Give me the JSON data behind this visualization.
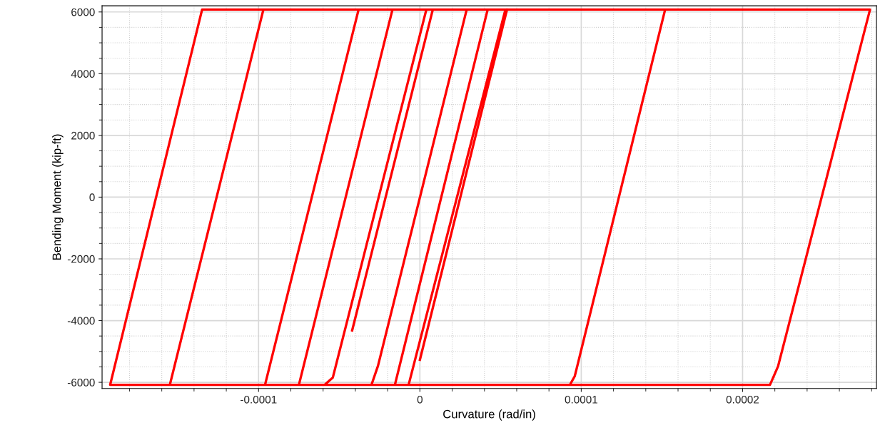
{
  "chart_data": {
    "type": "line",
    "xlabel": "Curvature (rad/in)",
    "ylabel": "Bending Moment (kip-ft)",
    "xlim": [
      -0.000197,
      0.000283
    ],
    "ylim": [
      -6200,
      6200
    ],
    "xticks": [
      -0.0001,
      0,
      0.0001,
      0.0002
    ],
    "yticks": [
      -6000,
      -4000,
      -2000,
      0,
      2000,
      4000,
      6000
    ],
    "grid": true,
    "marker": "none",
    "line_style": "solid",
    "series": [
      {
        "color": "#ff0000",
        "x": [
          0.0,
          5.4e-05,
          0.0,
          5.4e-05,
          5.8e-05,
          0.000152,
          9.6e-05,
          9.3e-05,
          -1.55e-05,
          4.2e-05,
          0.000279,
          0.000222,
          0.000217,
          -0.000192,
          -0.000135,
          5.3e-05,
          -7e-06,
          -0.000155,
          -9.7e-05,
          2.9e-05,
          -2.6e-05,
          -3e-05,
          -9.6e-05,
          -3.8e-05,
          4e-06,
          -5.4e-05,
          -5.9e-05,
          -7.5e-05,
          -1.7e-05,
          8e-06,
          -4.2e-05
        ],
        "values": [
          -5270,
          6080,
          -5270,
          6080,
          6080,
          6080,
          -5800,
          -6080,
          -6080,
          6080,
          6080,
          -5480,
          -6080,
          -6080,
          6080,
          6080,
          -6080,
          -6080,
          6080,
          6080,
          -5470,
          -6080,
          -6080,
          6080,
          6080,
          -5850,
          -6080,
          -6080,
          6080,
          6080,
          -4320
        ]
      }
    ]
  }
}
